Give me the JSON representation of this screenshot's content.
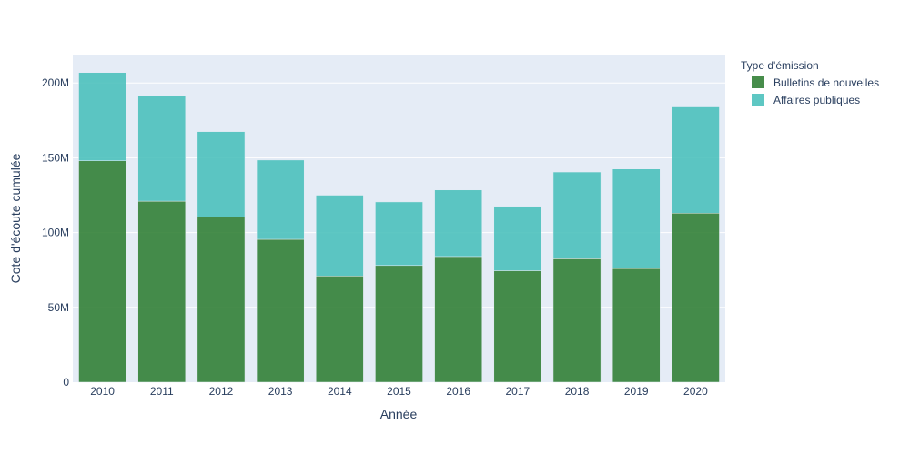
{
  "chart_data": {
    "type": "bar",
    "stacked": true,
    "xlabel": "Année",
    "ylabel": "Cote d'écoute cumulée",
    "ylim": [
      0,
      219000000
    ],
    "y_ticks": [
      0,
      50000000,
      100000000,
      150000000,
      200000000
    ],
    "y_tick_labels": [
      "0",
      "50M",
      "100M",
      "150M",
      "200M"
    ],
    "categories": [
      "2010",
      "2011",
      "2012",
      "2013",
      "2014",
      "2015",
      "2016",
      "2017",
      "2018",
      "2019",
      "2020"
    ],
    "legend_title": "Type d'émission",
    "legend_position": "top-right",
    "grid": true,
    "plot_background": "#e5ecf6",
    "series": [
      {
        "name": "Bulletins de nouvelles",
        "color": "#2e7d32",
        "values": [
          148000000,
          121000000,
          110500000,
          95500000,
          71000000,
          78000000,
          84000000,
          74500000,
          82500000,
          76000000,
          113000000
        ]
      },
      {
        "name": "Affaires publiques",
        "color": "#48bfbb",
        "values": [
          59000000,
          70500000,
          57000000,
          53000000,
          54000000,
          42500000,
          44500000,
          43000000,
          58000000,
          66500000,
          71000000
        ]
      }
    ]
  }
}
